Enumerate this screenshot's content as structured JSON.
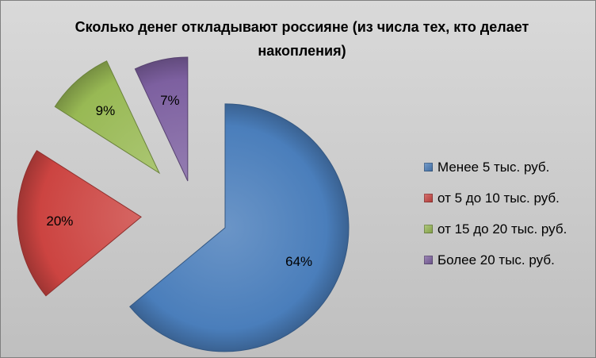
{
  "chart_data": {
    "type": "pie",
    "title": "Сколько денег откладывают россияне (из числа тех, кто делает накопления)",
    "categories": [
      "Менее 5 тыс. руб.",
      "от 5 до 10 тыс. руб.",
      "от 15 до 20 тыс. руб.",
      "Более 20 тыс. руб."
    ],
    "values": [
      64,
      20,
      9,
      7
    ],
    "labels": [
      "64%",
      "20%",
      "9%",
      "7%"
    ],
    "colors": [
      "#4a7ebb",
      "#cc4441",
      "#98b954",
      "#7d60a0"
    ],
    "exploded": true,
    "legend_position": "right"
  }
}
